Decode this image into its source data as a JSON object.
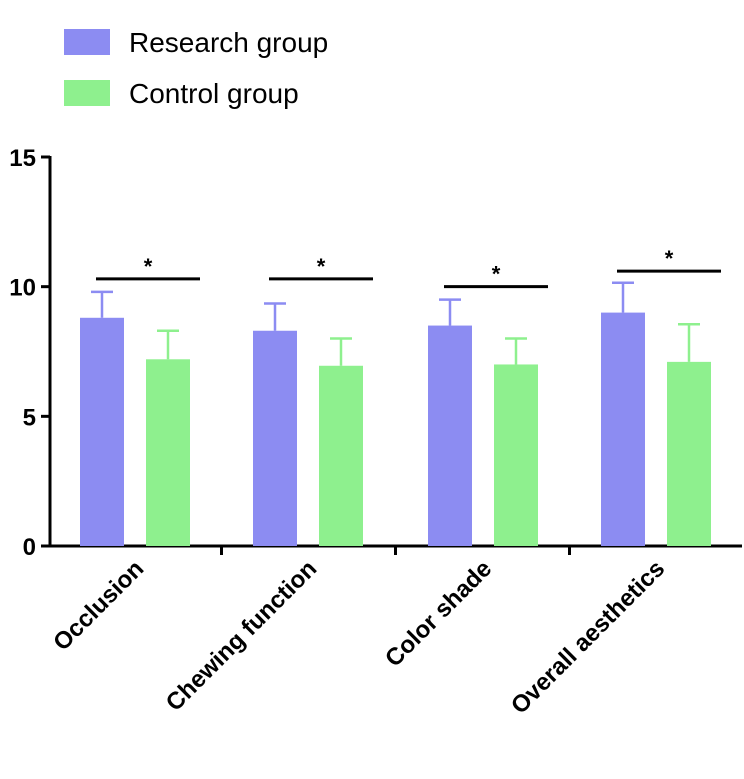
{
  "chart_data": {
    "type": "bar",
    "title": "",
    "xlabel": "",
    "ylabel": "",
    "ylim": [
      0,
      15
    ],
    "yticks": [
      0,
      5,
      10,
      15
    ],
    "categories": [
      "Occlusion",
      "Chewing function",
      "Color shade",
      "Overall aesthetics"
    ],
    "series": [
      {
        "name": "Research group",
        "color": "#8c8cf2",
        "values": [
          8.8,
          8.3,
          8.5,
          9.0
        ],
        "errors": [
          1.0,
          1.05,
          1.0,
          1.15
        ]
      },
      {
        "name": "Control group",
        "color": "#8ef08e",
        "values": [
          7.2,
          6.95,
          7.0,
          7.1
        ],
        "errors": [
          1.1,
          1.05,
          1.0,
          1.45
        ]
      }
    ],
    "significance": [
      {
        "category": "Occlusion",
        "y": 10.3,
        "label": "*"
      },
      {
        "category": "Chewing function",
        "y": 10.3,
        "label": "*"
      },
      {
        "category": "Color shade",
        "y": 10.0,
        "label": "*"
      },
      {
        "category": "Overall aesthetics",
        "y": 10.6,
        "label": "*"
      }
    ],
    "legend_position": "top-left",
    "grid": false
  }
}
